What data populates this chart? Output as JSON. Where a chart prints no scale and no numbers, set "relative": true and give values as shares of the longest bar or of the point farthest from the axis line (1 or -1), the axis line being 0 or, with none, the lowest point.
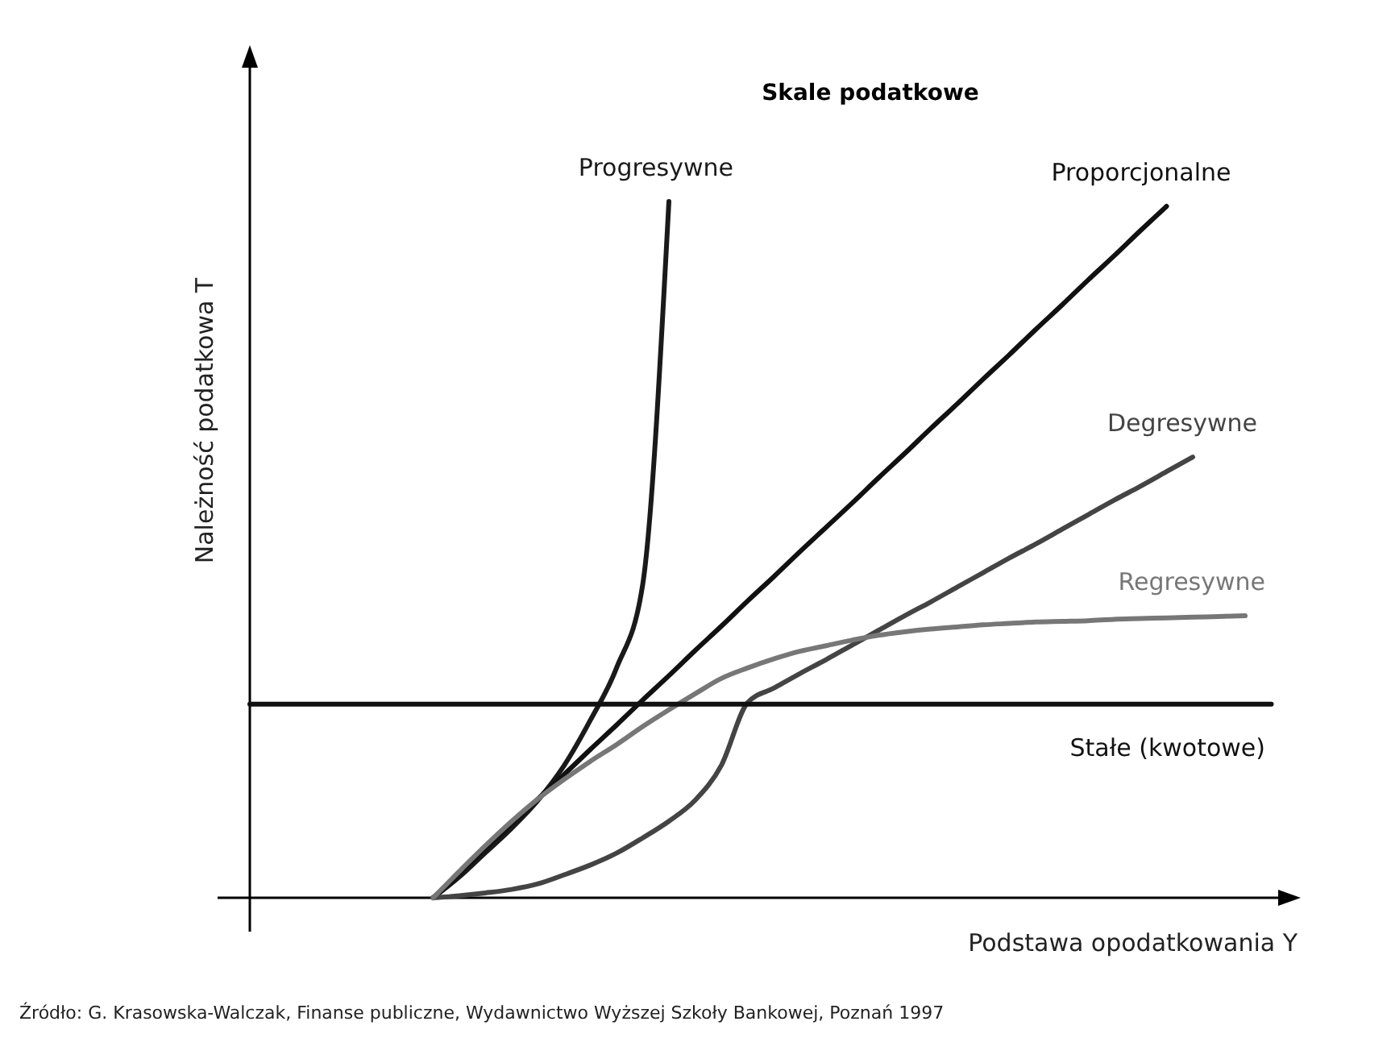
{
  "chart_data": {
    "type": "line",
    "relative": true,
    "title": "Skale podatkowe",
    "xlabel": "Podstawa opodatkowania Y",
    "ylabel": "Należność podatkowa T",
    "marker": "none",
    "line_style": "solid",
    "categories": [
      null,
      null,
      null,
      null,
      null,
      null,
      null,
      null,
      null,
      null,
      null,
      null,
      null,
      null,
      null,
      null,
      null,
      null,
      null,
      null,
      null,
      null,
      null,
      null,
      null,
      null,
      null,
      null,
      null,
      null,
      null,
      null,
      null,
      null,
      null,
      null,
      null,
      null,
      null,
      null,
      null
    ],
    "series": [
      {
        "name": "Progresywne",
        "color": "#1a1a1a",
        "values": [
          null,
          null,
          null,
          null,
          null,
          null,
          null,
          0,
          0.03,
          0.065,
          0.1,
          0.14,
          0.19,
          0.255,
          0.33,
          0.45,
          1,
          null,
          null,
          null,
          null,
          null,
          null,
          null,
          null,
          null,
          null,
          null,
          null,
          null,
          null,
          null,
          null,
          null,
          null,
          null,
          null,
          null,
          null,
          null,
          null
        ]
      },
      {
        "name": "Proporcjonalne",
        "color": "#111111",
        "values": [
          null,
          null,
          null,
          null,
          null,
          null,
          null,
          0,
          0.035,
          0.071,
          0.106,
          0.142,
          0.177,
          0.213,
          0.248,
          0.284,
          0.319,
          0.355,
          0.39,
          0.426,
          0.461,
          0.497,
          0.532,
          0.567,
          0.603,
          0.638,
          0.674,
          0.709,
          0.745,
          0.78,
          0.816,
          0.851,
          0.887,
          0.922,
          0.958,
          0.993,
          null,
          null,
          null,
          null,
          null
        ]
      },
      {
        "name": "Degresywne",
        "color": "#444444",
        "values": [
          null,
          null,
          null,
          null,
          null,
          null,
          null,
          0,
          0.003,
          0.007,
          0.012,
          0.02,
          0.033,
          0.047,
          0.064,
          0.086,
          0.11,
          0.14,
          0.19,
          0.28,
          0.301,
          0.322,
          0.342,
          0.363,
          0.384,
          0.405,
          0.425,
          0.446,
          0.467,
          0.488,
          0.508,
          0.529,
          0.55,
          0.571,
          0.591,
          0.612,
          0.633,
          null,
          null,
          null,
          null
        ]
      },
      {
        "name": "Regresywne",
        "color": "#777777",
        "values": [
          null,
          null,
          null,
          null,
          null,
          null,
          null,
          0,
          0.038,
          0.075,
          0.11,
          0.142,
          0.17,
          0.196,
          0.22,
          0.246,
          0.27,
          0.293,
          0.315,
          0.33,
          0.343,
          0.354,
          0.362,
          0.37,
          0.377,
          0.382,
          0.386,
          0.389,
          0.392,
          0.394,
          0.396,
          0.397,
          0.398,
          0.4,
          0.401,
          0.402,
          0.403,
          0.404,
          0.405,
          null,
          null
        ]
      },
      {
        "name": "Stałe (kwotowe)",
        "color": "#111111",
        "values": [
          0.278,
          0.278,
          0.278,
          0.278,
          0.278,
          0.278,
          0.278,
          0.278,
          0.278,
          0.278,
          0.278,
          0.278,
          0.278,
          0.278,
          0.278,
          0.278,
          0.278,
          0.278,
          0.278,
          0.278,
          0.278,
          0.278,
          0.278,
          0.278,
          0.278,
          0.278,
          0.278,
          0.278,
          0.278,
          0.278,
          0.278,
          0.278,
          0.278,
          0.278,
          0.278,
          0.278,
          0.278,
          0.278,
          0.278,
          0.278,
          null
        ]
      }
    ],
    "annotations": [
      "Źródło: G. Krasowska-Walczak, Finanse publiczne, Wydawnictwo Wyższej Szkoły Bankowej, Poznań 1997"
    ]
  }
}
